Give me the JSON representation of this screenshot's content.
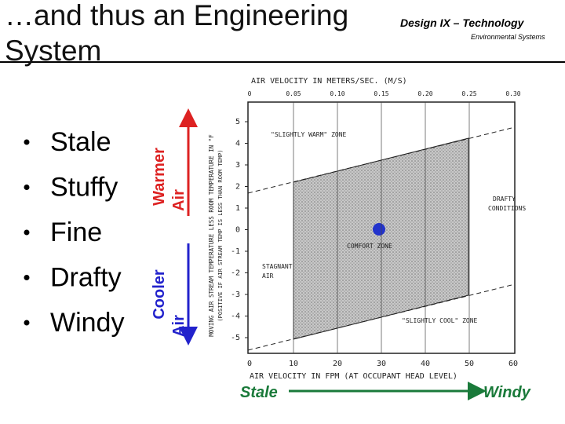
{
  "header": {
    "title_line1": "…and thus an Engineering",
    "title_line2": "System",
    "course": "Design IX – Technology",
    "subtitle": "Environmental Systems"
  },
  "bullets": [
    "Stale",
    "Stuffy",
    "Fine",
    "Drafty",
    "Windy"
  ],
  "side_labels": {
    "warmer": [
      "Warmer",
      "Air"
    ],
    "cooler": [
      "Cooler",
      "Air"
    ]
  },
  "chart": {
    "top_axis_label": "AIR VELOCITY IN METERS/SEC. (M/S)",
    "top_ticks": [
      "0",
      "0.05",
      "0.10",
      "0.15",
      "0.20",
      "0.25",
      "0.30"
    ],
    "bottom_ticks": [
      "0",
      "10",
      "20",
      "30",
      "40",
      "50",
      "60"
    ],
    "left_ticks": [
      "5",
      "4",
      "3",
      "2",
      "1",
      "0",
      "-1",
      "-2",
      "-3",
      "-4",
      "-5"
    ],
    "y_axis_label": [
      "MOVING AIR STREAM TEMPERATURE LESS ROOM TEMPERATURE IN °F",
      "(POSITIVE IF AIR STREAM TEMP IS LESS THAN ROOM TEMP)"
    ],
    "bottom_axis_label": "AIR VELOCITY IN FPM (AT OCCUPANT HEAD LEVEL)",
    "zones": {
      "warm": "\"SLIGHTLY WARM\" ZONE",
      "drafty": [
        "DRAFTY",
        "CONDITIONS"
      ],
      "comfort": "COMFORT ZONE",
      "stagnant": [
        "STAGNANT",
        "AIR"
      ],
      "cool": "\"SLIGHTLY COOL\" ZONE"
    }
  },
  "scale": {
    "left": "Stale",
    "right": "Windy"
  }
}
